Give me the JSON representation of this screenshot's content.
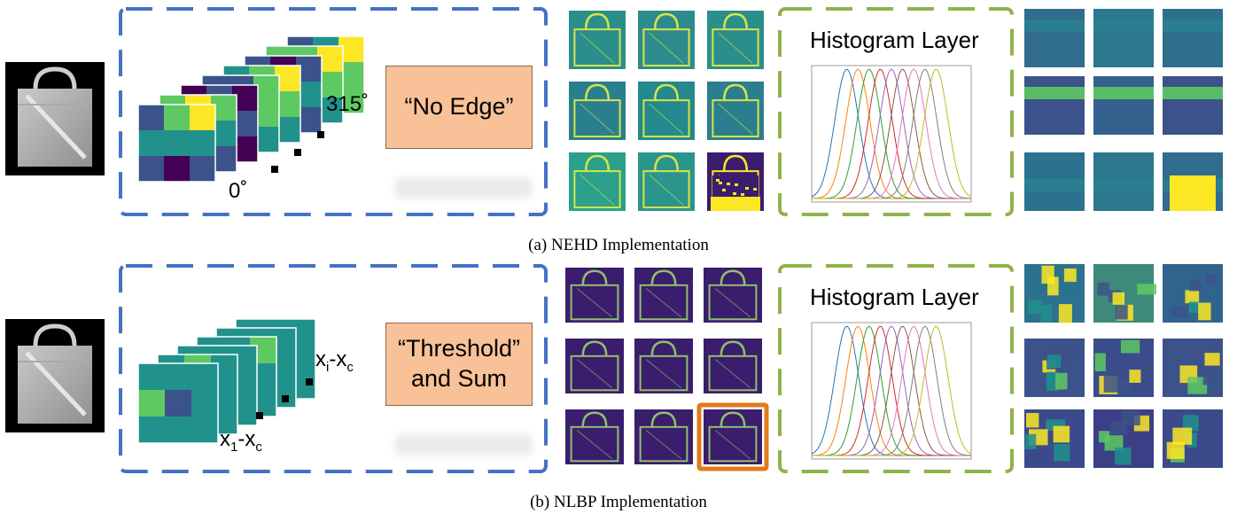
{
  "panel_a": {
    "caption": "(a) NEHD Implementation",
    "operation_label": "“No Edge”",
    "histogram_title": "Histogram Layer",
    "angle_start": "0˚",
    "angle_end": "315˚",
    "output_map_colors": [
      "#2a8f8a",
      "#2d8c8b",
      "#2b8e8b",
      "#2a7f8e",
      "#23898d",
      "#2a7f8e",
      "#2ba08a",
      "#2a958c",
      "#fde725"
    ],
    "histogram_map_colors": [
      "#2f6c8e",
      "#2a778e",
      "#2e6f8e",
      "#3b528b",
      "#34608d",
      "#3b528b",
      "#2c728e",
      "#2a778e",
      "#2f6c8e"
    ]
  },
  "panel_b": {
    "caption": "(b) NLBP Implementation",
    "operation_label_line1": "“Threshold”",
    "operation_label_line2": "and Sum",
    "histogram_title": "Histogram Layer",
    "diff_first_main": "x",
    "diff_first_sub": "1",
    "diff_last_main": "x",
    "diff_last_sub": "i",
    "diff_center_main": "x",
    "diff_center_sub": "c",
    "diff_minus": "-",
    "output_map_colors": [
      "#3b1d6e",
      "#3b1d6e",
      "#3b1d6e",
      "#3b1d6e",
      "#3b1d6e",
      "#3b1d6e",
      "#3b1d6e",
      "#3b1d6e",
      "#3b1d6e"
    ],
    "histogram_map_colors": [
      "#2c728e",
      "#3e8a7a",
      "#31648d",
      "#3b528b",
      "#3a4c8a",
      "#3b528b",
      "#3b4a8a",
      "#3a3f87",
      "#3b4a8a"
    ]
  },
  "colors": {
    "dashed_blue": "#4472c4",
    "dashed_green": "#8fb34a",
    "operation_fill": "#f8c197",
    "highlight_border": "#e07b1a",
    "viridis_yellow": "#fde725",
    "viridis_green": "#5ec962",
    "viridis_teal": "#21918c",
    "viridis_blue": "#3b528b",
    "viridis_purple": "#440154"
  }
}
